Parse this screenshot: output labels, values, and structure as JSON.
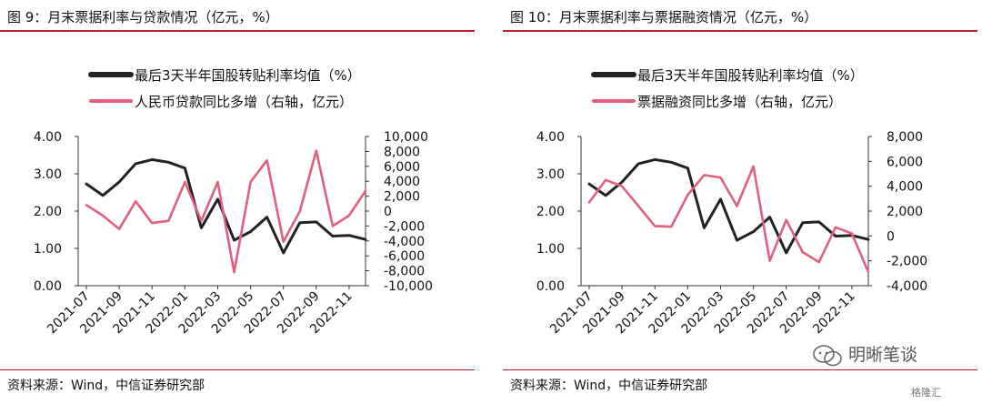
{
  "colors": {
    "accent_red": "#c0202a",
    "series_black": "#222222",
    "series_pink": "#e0607e"
  },
  "source_label": "资料来源：Wind，中信证券研究部",
  "watermark": {
    "icon": "wechat-bubble-icon",
    "text": "明晰笔谈",
    "secondary": "格隆汇"
  },
  "charts": [
    {
      "figure_title": "图 9：月末票据利率与贷款情况（亿元，%）",
      "left_ticks": [
        "0.00",
        "1.00",
        "2.00",
        "3.00",
        "4.00"
      ],
      "right_ticks": [
        "-10,000",
        "-8,000",
        "-6,000",
        "-4,000",
        "-2,000",
        "0",
        "2,000",
        "4,000",
        "6,000",
        "8,000",
        "10,000"
      ],
      "x_ticks": [
        "2021-07",
        "2021-09",
        "2021-11",
        "2022-01",
        "2022-03",
        "2022-05",
        "2022-07",
        "2022-09",
        "2022-11"
      ]
    },
    {
      "figure_title": "图 10：月末票据利率与票据融资情况（亿元，%）",
      "left_ticks": [
        "0.00",
        "1.00",
        "2.00",
        "3.00",
        "4.00"
      ],
      "right_ticks": [
        "-4,000",
        "-2,000",
        "0",
        "2,000",
        "4,000",
        "6,000",
        "8,000"
      ],
      "x_ticks": [
        "2021-07",
        "2021-09",
        "2021-11",
        "2022-01",
        "2022-03",
        "2022-05",
        "2022-07",
        "2022-09",
        "2022-11"
      ]
    }
  ],
  "chart_data": [
    {
      "type": "line",
      "title": "图 9：月末票据利率与贷款情况（亿元，%）",
      "x": [
        "2021-07",
        "2021-08",
        "2021-09",
        "2021-10",
        "2021-11",
        "2021-12",
        "2022-01",
        "2022-02",
        "2022-03",
        "2022-04",
        "2022-05",
        "2022-06",
        "2022-07",
        "2022-08",
        "2022-09",
        "2022-10",
        "2022-11",
        "2022-12"
      ],
      "ylim_left": [
        0,
        4
      ],
      "ylim_right": [
        -10000,
        10000
      ],
      "series": [
        {
          "name": "最后3天半年国股转贴利率均值（%）",
          "axis": "left",
          "values": [
            2.73,
            2.42,
            2.78,
            3.27,
            3.38,
            3.31,
            3.15,
            1.55,
            2.32,
            1.22,
            1.45,
            1.84,
            0.88,
            1.69,
            1.71,
            1.33,
            1.35,
            1.24
          ]
        },
        {
          "name": "人民币贷款同比多增（右轴，亿元）",
          "axis": "right",
          "values": [
            800,
            -600,
            -2400,
            1300,
            -1600,
            -1300,
            3900,
            -1300,
            3900,
            -8200,
            3900,
            6800,
            -4100,
            0,
            8100,
            -2000,
            -600,
            2700
          ]
        }
      ]
    },
    {
      "type": "line",
      "title": "图 10：月末票据利率与票据融资情况（亿元，%）",
      "x": [
        "2021-07",
        "2021-08",
        "2021-09",
        "2021-10",
        "2021-11",
        "2021-12",
        "2022-01",
        "2022-02",
        "2022-03",
        "2022-04",
        "2022-05",
        "2022-06",
        "2022-07",
        "2022-08",
        "2022-09",
        "2022-10",
        "2022-11",
        "2022-12"
      ],
      "ylim_left": [
        0,
        4
      ],
      "ylim_right": [
        -4000,
        8000
      ],
      "series": [
        {
          "name": "最后3天半年国股转贴利率均值（%）",
          "axis": "left",
          "values": [
            2.73,
            2.42,
            2.78,
            3.27,
            3.38,
            3.31,
            3.15,
            1.55,
            2.32,
            1.22,
            1.45,
            1.84,
            0.88,
            1.69,
            1.71,
            1.33,
            1.35,
            1.24
          ]
        },
        {
          "name": "票据融资同比多增（右轴，亿元）",
          "axis": "right",
          "values": [
            2700,
            4500,
            4000,
            2400,
            800,
            750,
            3300,
            4900,
            4700,
            2400,
            5600,
            -2000,
            1300,
            -1300,
            -2100,
            700,
            200,
            -2900
          ]
        }
      ]
    }
  ]
}
